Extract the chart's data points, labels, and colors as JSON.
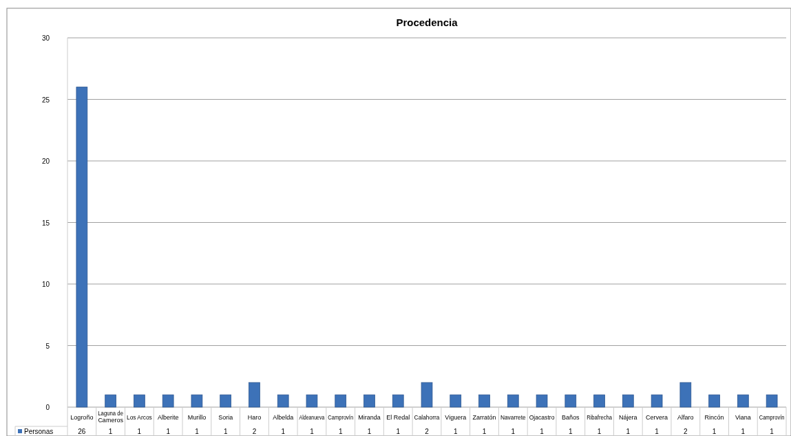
{
  "chart_data": {
    "type": "bar",
    "title": "Procedencia",
    "categories": [
      "Logroño",
      "Laguna de Cameros",
      "Los Arcos",
      "Alberite",
      "Murillo",
      "Soria",
      "Haro",
      "Albelda",
      "Aldeanueva",
      "Camprovín",
      "Miranda",
      "El Redal",
      "Calahorra",
      "Viguera",
      "Zarratón",
      "Navarrete",
      "Ojacastro",
      "Baños",
      "Ribafrecha",
      "Nájera",
      "Cervera",
      "Alfaro",
      "Rincón",
      "Viana",
      "Camprovín"
    ],
    "series": [
      {
        "name": "Personas",
        "color": "#3d72b8",
        "values": [
          26,
          1,
          1,
          1,
          1,
          1,
          2,
          1,
          1,
          1,
          1,
          1,
          2,
          1,
          1,
          1,
          1,
          1,
          1,
          1,
          1,
          2,
          1,
          1,
          1
        ]
      }
    ],
    "ylim": [
      0,
      30
    ],
    "yticks": [
      0,
      5,
      10,
      15,
      20,
      25,
      30
    ],
    "grid": "y",
    "data_labels": true,
    "legend": "bottom left"
  }
}
